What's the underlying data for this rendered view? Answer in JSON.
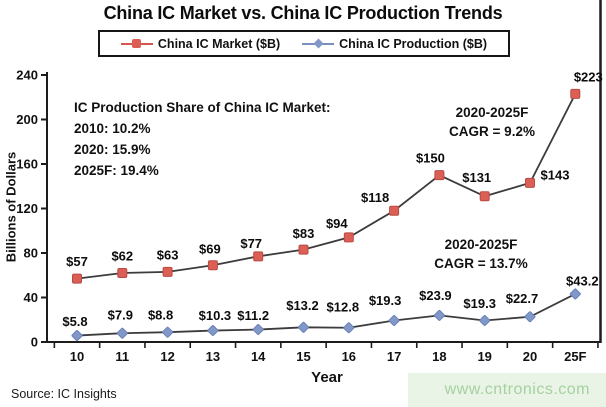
{
  "title": "China IC Market vs. China IC Production Trends",
  "legend": {
    "items": [
      {
        "label": "China IC Market ($B)",
        "marker": "square",
        "color": "#dc5f56",
        "line_color": "#d4574f"
      },
      {
        "label": "China IC Production ($B)",
        "marker": "diamond",
        "color": "#8298c9",
        "line_color": "#7a8fc0"
      }
    ]
  },
  "annotations": {
    "production_share": {
      "heading": "IC Production Share of China IC Market:",
      "lines": [
        "2010: 10.2%",
        "2020: 15.9%",
        "2025F: 19.4%"
      ]
    },
    "market_cagr": {
      "period": "2020-2025F",
      "value": "CAGR = 9.2%"
    },
    "production_cagr": {
      "period": "2020-2025F",
      "value": "CAGR = 13.7%"
    }
  },
  "axes": {
    "ylabel": "Billions of Dollars",
    "xlabel": "Year"
  },
  "footer": {
    "source": "Source: IC Insights",
    "watermark": "www.cntronics.com"
  },
  "chart_data": {
    "type": "line",
    "title": "China IC Market vs. China IC Production Trends",
    "xlabel": "Year",
    "ylabel": "Billions of Dollars",
    "categories": [
      "10",
      "11",
      "12",
      "13",
      "14",
      "15",
      "16",
      "17",
      "18",
      "19",
      "20",
      "25F"
    ],
    "ylim": [
      0,
      240
    ],
    "yticks": [
      0,
      40,
      80,
      120,
      160,
      200,
      240
    ],
    "grid": false,
    "legend_position": "top",
    "axis_color": "#1c1c1c",
    "series": [
      {
        "name": "China IC Market ($B)",
        "marker": "square",
        "marker_color": "#dc5f56",
        "marker_edge": "#b84a43",
        "line_color": "#3c3c3c",
        "values": [
          57,
          62,
          63,
          69,
          77,
          83,
          94,
          118,
          150,
          131,
          143,
          223
        ],
        "labels": [
          "$57",
          "$62",
          "$63",
          "$69",
          "$77",
          "$83",
          "$94",
          "$118",
          "$150",
          "$131",
          "$143",
          "$223"
        ],
        "label_dx": [
          0,
          0,
          0,
          -3,
          -7,
          0,
          -12,
          -19,
          -9,
          -8,
          25,
          13
        ],
        "label_dy": [
          -17,
          -17,
          -17,
          -16,
          -13,
          -16,
          -14,
          -13,
          -17,
          -19,
          -8,
          -17
        ]
      },
      {
        "name": "China IC Production ($B)",
        "marker": "diamond",
        "marker_color": "#8298c9",
        "marker_edge": "#6a81b6",
        "line_color": "#3c3c3c",
        "values": [
          5.8,
          7.9,
          8.8,
          10.3,
          11.2,
          13.2,
          12.8,
          19.3,
          23.9,
          19.3,
          22.7,
          43.2
        ],
        "labels": [
          "$5.8",
          "$7.9",
          "$8.8",
          "$10.3",
          "$11.2",
          "$13.2",
          "$12.8",
          "$19.3",
          "$23.9",
          "$19.3",
          "$22.7",
          "$43.2"
        ],
        "label_dx": [
          -2,
          -2,
          -7,
          2,
          -5,
          -1,
          -6,
          -9,
          -4,
          -5,
          -8,
          7
        ],
        "label_dy": [
          -14,
          -18,
          -17,
          -15,
          -14,
          -22,
          -21,
          -20,
          -20,
          -17,
          -18,
          -13
        ]
      }
    ]
  }
}
